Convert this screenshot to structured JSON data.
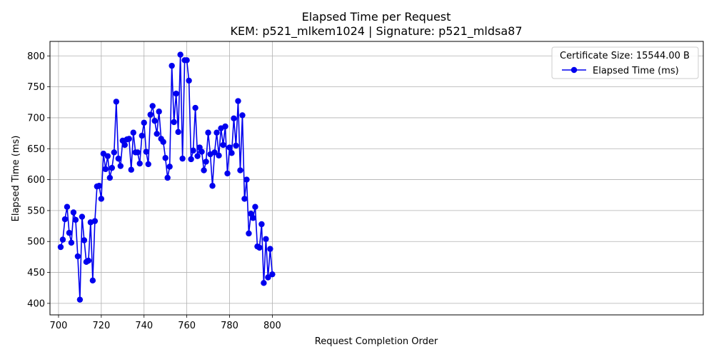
{
  "chart_data": {
    "type": "line",
    "title": "Elapsed Time per Request",
    "subtitle": "KEM: p521_mlkem1024 | Signature: p521_mldsa87",
    "xlabel": "Request Completion Order",
    "ylabel": "Elapsed Time (ms)",
    "xlim": [
      696,
      1001.6
    ],
    "ylim": [
      381.4,
      823.4
    ],
    "xticks": [
      700,
      720,
      740,
      760,
      780,
      800
    ],
    "yticks": [
      400,
      450,
      500,
      550,
      600,
      650,
      700,
      750,
      800
    ],
    "grid": true,
    "legend_title": "Certificate Size: 15544.00 B",
    "legend_position": "top-right",
    "series": [
      {
        "name": "Elapsed Time (ms)",
        "color": "#0000ee",
        "x": [
          701,
          702,
          703,
          704,
          705,
          706,
          707,
          708,
          709,
          710,
          711,
          712,
          713,
          714,
          715,
          716,
          717,
          718,
          719,
          720,
          721,
          722,
          723,
          724,
          725,
          726,
          727,
          728,
          729,
          730,
          731,
          732,
          733,
          734,
          735,
          736,
          737,
          738,
          739,
          740,
          741,
          742,
          743,
          744,
          745,
          746,
          747,
          748,
          749,
          750,
          751,
          752,
          753,
          754,
          755,
          756,
          757,
          758,
          759,
          760,
          761,
          762,
          763,
          764,
          765,
          766,
          767,
          768,
          769,
          770,
          771,
          772,
          773,
          774,
          775,
          776,
          777,
          778,
          779,
          780,
          781,
          782,
          783,
          784,
          785,
          786,
          787,
          788,
          789,
          790,
          791,
          792,
          793,
          794,
          795,
          796,
          797,
          798,
          799,
          800
        ],
        "values": [
          491,
          503,
          536,
          556,
          514,
          498,
          547,
          535,
          476,
          406,
          540,
          502,
          467,
          469,
          531,
          437,
          533,
          589,
          590,
          569,
          642,
          617,
          638,
          603,
          619,
          644,
          726,
          634,
          622,
          663,
          656,
          665,
          666,
          616,
          676,
          644,
          644,
          626,
          671,
          692,
          645,
          625,
          705,
          719,
          695,
          674,
          710,
          666,
          661,
          635,
          603,
          621,
          784,
          693,
          739,
          677,
          802,
          634,
          793,
          793,
          760,
          633,
          647,
          716,
          638,
          652,
          645,
          615,
          629,
          676,
          641,
          590,
          644,
          676,
          639,
          683,
          656,
          686,
          610,
          652,
          643,
          699,
          655,
          727,
          615,
          704,
          569,
          600,
          513,
          545,
          538,
          556,
          492,
          490,
          528,
          433,
          504,
          442,
          488,
          447
        ]
      }
    ]
  }
}
